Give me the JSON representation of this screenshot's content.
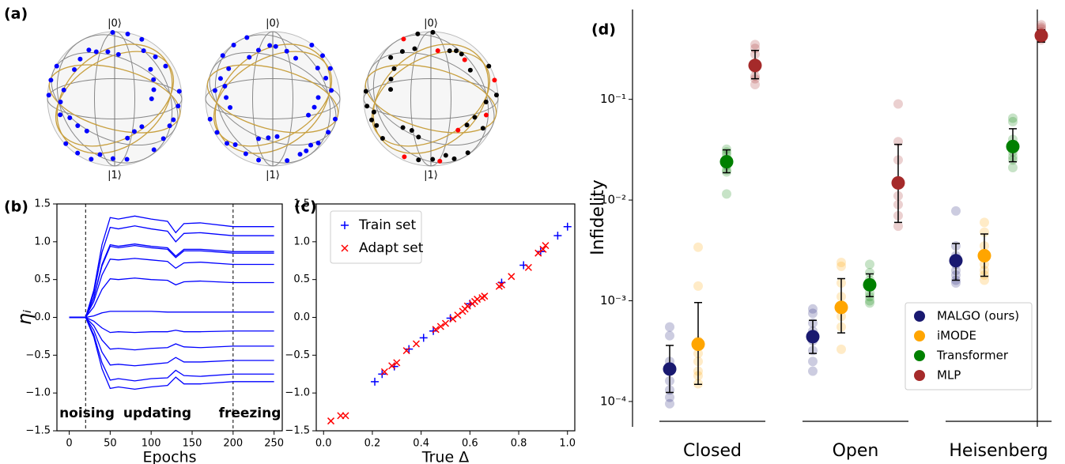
{
  "chart_data": [
    {
      "type": "bloch",
      "label": "(a)",
      "spheres": [
        {
          "top": "|0⟩",
          "bottom": "|1⟩"
        },
        {
          "top": "|0⟩",
          "bottom": "|1⟩"
        },
        {
          "top": "|0⟩",
          "bottom": "|1⟩"
        }
      ]
    },
    {
      "type": "line",
      "label": "(b)",
      "xlabel": "Epochs",
      "ylabel": "ηᵢ",
      "color": "#0000ff",
      "xlim": [
        -15,
        260
      ],
      "xticks": [
        0,
        50,
        100,
        150,
        200,
        250
      ],
      "ylim": [
        -1.5,
        1.5
      ],
      "yticks": [
        {
          "value": -1.5,
          "label": "−1.5"
        },
        {
          "value": -1.0,
          "label": "−1.0"
        },
        {
          "value": -0.5,
          "label": "−0.5"
        },
        {
          "value": 0,
          "label": "0.0"
        },
        {
          "value": 0.5,
          "label": "0.5"
        },
        {
          "value": 1.0,
          "label": "1.0"
        },
        {
          "value": 1.5,
          "label": "1.5"
        }
      ],
      "vlines": [
        20,
        200
      ],
      "annotations": [
        "noising",
        "updating",
        "freezing"
      ],
      "x": [
        0,
        20,
        30,
        40,
        50,
        60,
        80,
        100,
        120,
        130,
        140,
        160,
        200,
        250
      ],
      "series": [
        {
          "values": [
            0,
            0,
            0.36,
            0.96,
            1.32,
            1.3,
            1.34,
            1.3,
            1.27,
            1.12,
            1.24,
            1.25,
            1.2,
            1.2
          ]
        },
        {
          "values": [
            0,
            0,
            0.32,
            0.86,
            1.19,
            1.17,
            1.21,
            1.17,
            1.14,
            1.0,
            1.11,
            1.12,
            1.08,
            1.08
          ]
        },
        {
          "values": [
            0,
            0,
            0.26,
            0.7,
            0.96,
            0.94,
            0.97,
            0.94,
            0.92,
            0.81,
            0.9,
            0.9,
            0.87,
            0.87
          ]
        },
        {
          "values": [
            0,
            0,
            0.26,
            0.68,
            0.94,
            0.92,
            0.95,
            0.92,
            0.9,
            0.79,
            0.88,
            0.88,
            0.85,
            0.85
          ]
        },
        {
          "values": [
            0,
            0,
            0.21,
            0.56,
            0.77,
            0.76,
            0.78,
            0.76,
            0.74,
            0.65,
            0.72,
            0.73,
            0.7,
            0.7
          ]
        },
        {
          "values": [
            0,
            0,
            0.14,
            0.37,
            0.51,
            0.5,
            0.52,
            0.5,
            0.49,
            0.43,
            0.47,
            0.48,
            0.46,
            0.46
          ]
        },
        {
          "values": [
            0,
            0,
            0.02,
            0.06,
            0.08,
            0.08,
            0.08,
            0.08,
            0.07,
            0.07,
            0.07,
            0.07,
            0.07,
            0.07
          ]
        },
        {
          "values": [
            0,
            0,
            -0.05,
            -0.14,
            -0.2,
            -0.19,
            -0.2,
            -0.19,
            -0.19,
            -0.17,
            -0.19,
            -0.19,
            -0.18,
            -0.18
          ]
        },
        {
          "values": [
            0,
            0,
            -0.11,
            -0.3,
            -0.42,
            -0.41,
            -0.43,
            -0.41,
            -0.4,
            -0.35,
            -0.39,
            -0.4,
            -0.38,
            -0.38
          ]
        },
        {
          "values": [
            0,
            0,
            -0.17,
            -0.46,
            -0.63,
            -0.62,
            -0.64,
            -0.62,
            -0.6,
            -0.53,
            -0.59,
            -0.59,
            -0.57,
            -0.57
          ]
        },
        {
          "values": [
            0,
            0,
            -0.23,
            -0.6,
            -0.83,
            -0.81,
            -0.84,
            -0.81,
            -0.8,
            -0.7,
            -0.77,
            -0.78,
            -0.75,
            -0.75
          ]
        },
        {
          "values": [
            0,
            0,
            -0.26,
            -0.68,
            -0.94,
            -0.92,
            -0.95,
            -0.92,
            -0.9,
            -0.79,
            -0.88,
            -0.88,
            -0.85,
            -0.85
          ]
        }
      ]
    },
    {
      "type": "scatter",
      "label": "(c)",
      "xlabel": "True Δ",
      "legend": "upper left",
      "xlim": [
        -0.03,
        1.03
      ],
      "xticks": [
        {
          "value": 0,
          "label": "0.0"
        },
        {
          "value": 0.2,
          "label": "0.2"
        },
        {
          "value": 0.4,
          "label": "0.4"
        },
        {
          "value": 0.6,
          "label": "0.6"
        },
        {
          "value": 0.8,
          "label": "0.8"
        },
        {
          "value": 1.0,
          "label": "1.0"
        }
      ],
      "ylim": [
        -1.5,
        1.5
      ],
      "yticks": [
        {
          "value": -1.5,
          "label": "−1.5"
        },
        {
          "value": -1.0,
          "label": "−1.0"
        },
        {
          "value": -0.5,
          "label": "−0.5"
        },
        {
          "value": 0,
          "label": "0.0"
        },
        {
          "value": 0.5,
          "label": "0.5"
        },
        {
          "value": 1.0,
          "label": "1.0"
        },
        {
          "value": 1.5,
          "label": "1.5"
        }
      ],
      "series": [
        {
          "name": "Train set",
          "color": "#0000ff",
          "marker": "+",
          "x": [
            0.21,
            0.24,
            0.29,
            0.35,
            0.41,
            0.45,
            0.52,
            0.6,
            0.73,
            0.82,
            0.89,
            0.96,
            1.0
          ],
          "values": [
            -0.85,
            -0.75,
            -0.65,
            -0.42,
            -0.27,
            -0.18,
            -0.01,
            0.18,
            0.46,
            0.69,
            0.87,
            1.08,
            1.2
          ]
        },
        {
          "name": "Adapt set",
          "color": "#ff0000",
          "marker": "x",
          "x": [
            0.03,
            0.07,
            0.09,
            0.25,
            0.28,
            0.3,
            0.34,
            0.38,
            0.46,
            0.48,
            0.5,
            0.53,
            0.55,
            0.57,
            0.58,
            0.59,
            0.61,
            0.62,
            0.63,
            0.65,
            0.66,
            0.72,
            0.73,
            0.77,
            0.84,
            0.88,
            0.9,
            0.91
          ],
          "values": [
            -1.37,
            -1.3,
            -1.3,
            -0.72,
            -0.64,
            -0.6,
            -0.44,
            -0.35,
            -0.16,
            -0.12,
            -0.08,
            -0.02,
            0.03,
            0.08,
            0.11,
            0.15,
            0.18,
            0.21,
            0.24,
            0.26,
            0.28,
            0.41,
            0.43,
            0.54,
            0.66,
            0.85,
            0.9,
            0.95
          ]
        }
      ]
    },
    {
      "type": "strip",
      "label": "(d)",
      "ylabel": "Infidelity",
      "log": true,
      "legend": "lower right",
      "ylim": [
        5.6e-05,
        0.78
      ],
      "yticks": [
        {
          "value": 0.0001,
          "label": "10⁻⁴"
        },
        {
          "value": 0.001,
          "label": "10⁻³"
        },
        {
          "value": 0.01,
          "label": "10⁻²"
        },
        {
          "value": 0.1,
          "label": "10⁻¹"
        }
      ],
      "categories": [
        "Closed",
        "Open",
        "Heisenberg"
      ],
      "series": [
        {
          "name": "MALGO (ours)",
          "color": "#191970",
          "values": [
            0.00021,
            0.00044,
            0.0025
          ],
          "err_lower": [
            0.000123,
            0.0003,
            0.0016
          ],
          "err_upper": [
            0.00036,
            0.00064,
            0.0037
          ],
          "points": [
            [
              0.00055,
              0.00045,
              0.00025,
              0.0002,
              0.00016,
              0.00013,
              0.00011,
              9.5e-05
            ],
            [
              0.00083,
              0.00075,
              0.0006,
              0.0005,
              0.0004,
              0.00032,
              0.00025,
              0.0002
            ],
            [
              0.0078,
              0.0035,
              0.0028,
              0.0023,
              0.002,
              0.0018,
              0.0016,
              0.0015
            ]
          ]
        },
        {
          "name": "iMODE",
          "color": "#ffa500",
          "values": [
            0.00037,
            0.00086,
            0.0028
          ],
          "err_lower": [
            0.000148,
            0.00048,
            0.00175
          ],
          "err_upper": [
            0.00096,
            0.00166,
            0.0046
          ],
          "points": [
            [
              0.0034,
              0.0014,
              0.0004,
              0.0003,
              0.00025,
              0.0002,
              0.00018,
              0.00015
            ],
            [
              0.0024,
              0.0022,
              0.0015,
              0.0011,
              0.0009,
              0.0007,
              0.00055,
              0.00033
            ],
            [
              0.006,
              0.0048,
              0.0035,
              0.0028,
              0.0023,
              0.002,
              0.0018,
              0.0016
            ]
          ]
        },
        {
          "name": "Transformer",
          "color": "#008000",
          "values": [
            0.024,
            0.00144,
            0.034
          ],
          "err_lower": [
            0.0187,
            0.0011,
            0.024
          ],
          "err_upper": [
            0.0315,
            0.00185,
            0.051
          ],
          "points": [
            [
              0.032,
              0.03,
              0.028,
              0.025,
              0.022,
              0.02,
              0.019,
              0.0115
            ],
            [
              0.0023,
              0.0019,
              0.0016,
              0.0014,
              0.0012,
              0.0011,
              0.001,
              0.00095
            ],
            [
              0.065,
              0.06,
              0.04,
              0.035,
              0.03,
              0.027,
              0.025,
              0.021
            ]
          ]
        },
        {
          "name": "MLP",
          "color": "#a52a2a",
          "values": [
            0.217,
            0.0148,
            0.43
          ],
          "err_lower": [
            0.16,
            0.006,
            0.37
          ],
          "err_upper": [
            0.306,
            0.0357,
            0.49
          ],
          "points": [
            [
              0.35,
              0.32,
              0.28,
              0.22,
              0.2,
              0.17,
              0.16,
              0.14
            ],
            [
              0.09,
              0.038,
              0.025,
              0.015,
              0.011,
              0.009,
              0.007,
              0.0055
            ],
            [
              0.55,
              0.52,
              0.5,
              0.47,
              0.45,
              0.43,
              0.41,
              0.39
            ]
          ]
        }
      ]
    }
  ]
}
